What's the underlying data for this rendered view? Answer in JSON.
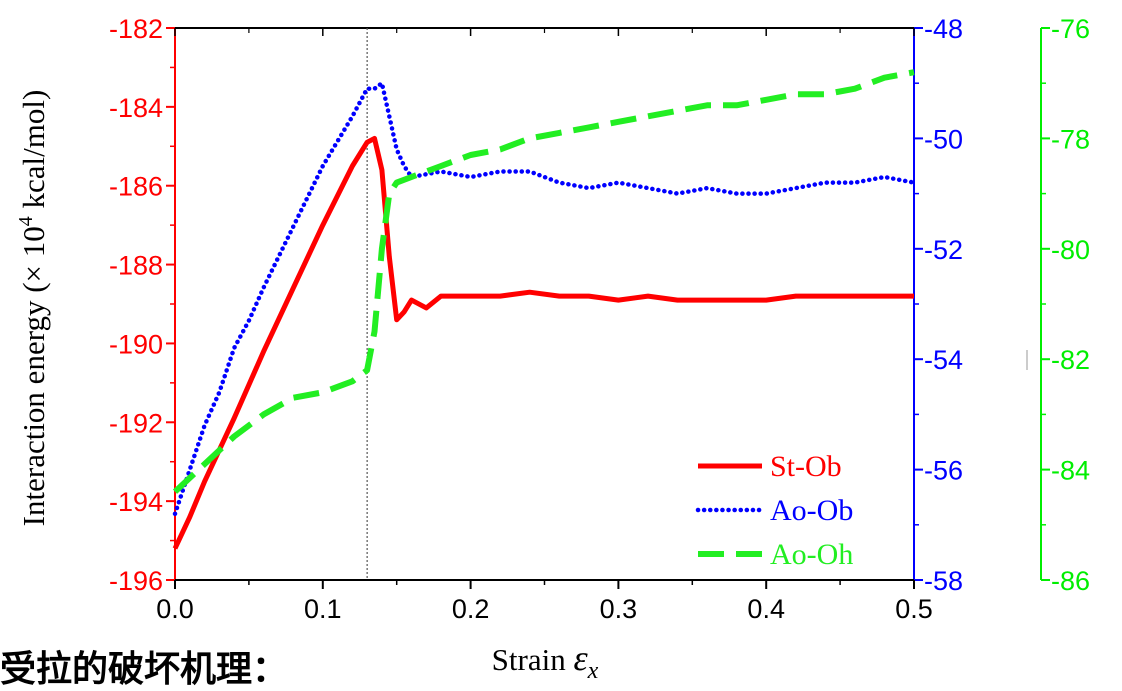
{
  "chart_data": {
    "type": "line",
    "xlabel_prefix": "Strain ",
    "xlabel_symbol": "ε",
    "xlabel_sub": "x",
    "ylabel_prefix": "Interaction energy (× 10",
    "ylabel_sup": "4",
    "ylabel_suffix": " kcal/mol)",
    "xlim": [
      0.0,
      0.5
    ],
    "x_ticks": [
      "0.0",
      "0.1",
      "0.2",
      "0.3",
      "0.4",
      "0.5"
    ],
    "y_left": {
      "lim": [
        -196,
        -182
      ],
      "ticks": [
        "-196",
        "-194",
        "-192",
        "-190",
        "-188",
        "-186",
        "-184",
        "-182"
      ],
      "color": "#ff0000"
    },
    "y_right1": {
      "lim": [
        -58,
        -48
      ],
      "ticks": [
        "-58",
        "-56",
        "-54",
        "-52",
        "-50",
        "-48"
      ],
      "color": "#0000ff"
    },
    "y_right2": {
      "lim": [
        -86,
        -76
      ],
      "ticks": [
        "-86",
        "-84",
        "-82",
        "-80",
        "-78",
        "-76"
      ],
      "color": "#00ee00"
    },
    "vline_x": 0.13,
    "legend_position": "bottom-right",
    "series": [
      {
        "name": "St-Ob",
        "axis": "left",
        "color": "#ff0000",
        "style": "solid",
        "x": [
          0.0,
          0.01,
          0.02,
          0.04,
          0.06,
          0.08,
          0.1,
          0.12,
          0.13,
          0.135,
          0.14,
          0.145,
          0.15,
          0.155,
          0.16,
          0.17,
          0.18,
          0.2,
          0.22,
          0.24,
          0.26,
          0.28,
          0.3,
          0.32,
          0.34,
          0.36,
          0.38,
          0.4,
          0.42,
          0.44,
          0.46,
          0.48,
          0.5
        ],
        "values": [
          -195.2,
          -194.4,
          -193.5,
          -191.9,
          -190.2,
          -188.6,
          -187.0,
          -185.5,
          -184.9,
          -184.8,
          -185.6,
          -187.8,
          -189.4,
          -189.2,
          -188.9,
          -189.1,
          -188.8,
          -188.8,
          -188.8,
          -188.7,
          -188.8,
          -188.8,
          -188.9,
          -188.8,
          -188.9,
          -188.9,
          -188.9,
          -188.9,
          -188.8,
          -188.8,
          -188.8,
          -188.8,
          -188.8
        ]
      },
      {
        "name": "Ao-Ob",
        "axis": "right1",
        "color": "#0000ff",
        "style": "dotted",
        "x": [
          0.0,
          0.01,
          0.02,
          0.03,
          0.04,
          0.05,
          0.06,
          0.08,
          0.1,
          0.12,
          0.13,
          0.135,
          0.14,
          0.145,
          0.15,
          0.155,
          0.16,
          0.18,
          0.2,
          0.22,
          0.24,
          0.26,
          0.28,
          0.3,
          0.32,
          0.34,
          0.36,
          0.38,
          0.4,
          0.42,
          0.44,
          0.46,
          0.48,
          0.5
        ],
        "values": [
          -56.8,
          -56.0,
          -55.2,
          -54.6,
          -53.8,
          -53.3,
          -52.7,
          -51.6,
          -50.5,
          -49.6,
          -49.1,
          -49.1,
          -49.0,
          -49.6,
          -50.2,
          -50.5,
          -50.7,
          -50.6,
          -50.7,
          -50.6,
          -50.6,
          -50.8,
          -50.9,
          -50.8,
          -50.9,
          -51.0,
          -50.9,
          -51.0,
          -51.0,
          -50.9,
          -50.8,
          -50.8,
          -50.7,
          -50.8
        ]
      },
      {
        "name": "Ao-Oh",
        "axis": "right2",
        "color": "#22ee22",
        "style": "dashed",
        "x": [
          0.0,
          0.02,
          0.04,
          0.06,
          0.08,
          0.1,
          0.12,
          0.13,
          0.135,
          0.14,
          0.145,
          0.15,
          0.16,
          0.18,
          0.2,
          0.22,
          0.24,
          0.26,
          0.28,
          0.3,
          0.32,
          0.34,
          0.36,
          0.38,
          0.4,
          0.42,
          0.44,
          0.46,
          0.48,
          0.5
        ],
        "values": [
          -84.4,
          -83.9,
          -83.4,
          -83.0,
          -82.7,
          -82.6,
          -82.4,
          -82.2,
          -81.5,
          -80.0,
          -79.0,
          -78.8,
          -78.7,
          -78.5,
          -78.3,
          -78.2,
          -78.0,
          -77.9,
          -77.8,
          -77.7,
          -77.6,
          -77.5,
          -77.4,
          -77.4,
          -77.3,
          -77.2,
          -77.2,
          -77.1,
          -76.9,
          -76.8
        ]
      }
    ]
  },
  "footer": {
    "text": "受拉的破坏机理："
  }
}
